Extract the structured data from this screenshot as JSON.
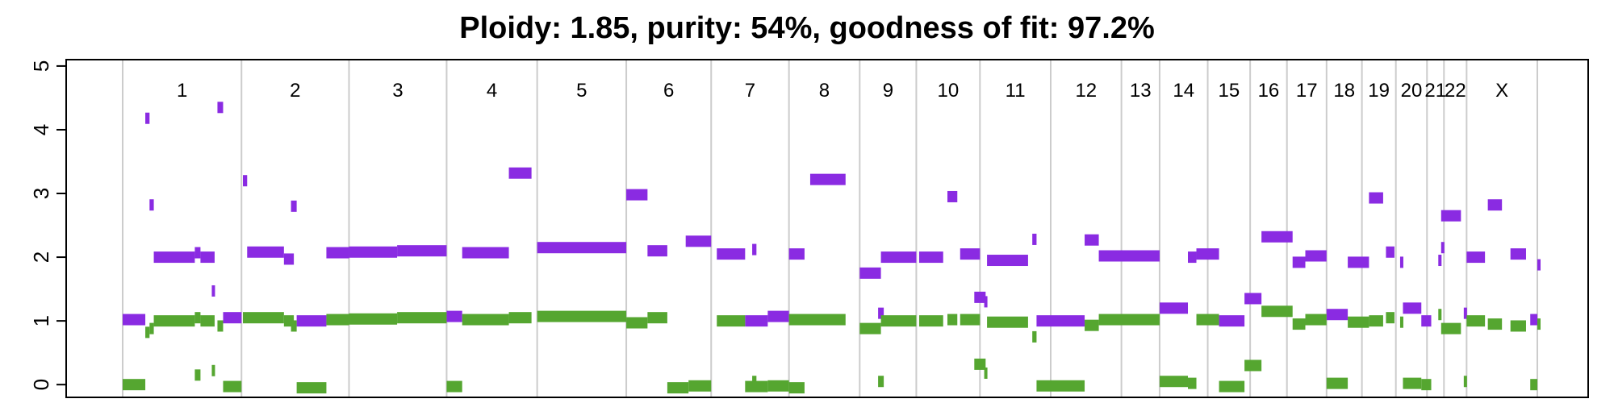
{
  "chart_data": {
    "type": "scatter",
    "title": "Ploidy: 1.85, purity: 54%, goodness of fit: 97.2%",
    "xlabel": "",
    "ylabel": "",
    "ylim": [
      -0.2,
      5.1
    ],
    "y_ticks": [
      "0",
      "1",
      "2",
      "3",
      "4",
      "5"
    ],
    "grid": true,
    "chromosomes": [
      {
        "name": "1",
        "start": 0.0,
        "end": 0.084
      },
      {
        "name": "2",
        "start": 0.084,
        "end": 0.16
      },
      {
        "name": "3",
        "start": 0.16,
        "end": 0.229
      },
      {
        "name": "4",
        "start": 0.229,
        "end": 0.293
      },
      {
        "name": "5",
        "start": 0.293,
        "end": 0.356
      },
      {
        "name": "6",
        "start": 0.356,
        "end": 0.416
      },
      {
        "name": "7",
        "start": 0.416,
        "end": 0.471
      },
      {
        "name": "8",
        "start": 0.471,
        "end": 0.521
      },
      {
        "name": "9",
        "start": 0.521,
        "end": 0.561
      },
      {
        "name": "10",
        "start": 0.561,
        "end": 0.606
      },
      {
        "name": "11",
        "start": 0.606,
        "end": 0.656
      },
      {
        "name": "12",
        "start": 0.656,
        "end": 0.706
      },
      {
        "name": "13",
        "start": 0.706,
        "end": 0.733
      },
      {
        "name": "14",
        "start": 0.733,
        "end": 0.767
      },
      {
        "name": "15",
        "start": 0.767,
        "end": 0.797
      },
      {
        "name": "16",
        "start": 0.797,
        "end": 0.823
      },
      {
        "name": "17",
        "start": 0.823,
        "end": 0.851
      },
      {
        "name": "18",
        "start": 0.851,
        "end": 0.876
      },
      {
        "name": "19",
        "start": 0.876,
        "end": 0.9
      },
      {
        "name": "20",
        "start": 0.9,
        "end": 0.922
      },
      {
        "name": "21",
        "start": 0.922,
        "end": 0.934
      },
      {
        "name": "22",
        "start": 0.934,
        "end": 0.95
      },
      {
        "name": "X",
        "start": 0.95,
        "end": 1.0
      }
    ],
    "series": [
      {
        "color": "#8a2be2",
        "segments": [
          [
            0.0,
            0.016,
            1.02
          ],
          [
            0.016,
            0.019,
            4.18
          ],
          [
            0.019,
            0.022,
            2.82
          ],
          [
            0.022,
            0.051,
            2.0
          ],
          [
            0.051,
            0.055,
            2.07
          ],
          [
            0.055,
            0.065,
            2.0
          ],
          [
            0.063,
            0.065,
            1.47
          ],
          [
            0.067,
            0.071,
            4.35
          ],
          [
            0.071,
            0.084,
            1.05
          ],
          [
            0.085,
            0.088,
            3.2
          ],
          [
            0.088,
            0.114,
            2.08
          ],
          [
            0.114,
            0.121,
            1.97
          ],
          [
            0.119,
            0.123,
            2.8
          ],
          [
            0.123,
            0.144,
            1.0
          ],
          [
            0.144,
            0.16,
            2.07
          ],
          [
            0.16,
            0.194,
            2.08
          ],
          [
            0.194,
            0.229,
            2.1
          ],
          [
            0.229,
            0.24,
            1.07
          ],
          [
            0.24,
            0.273,
            2.07
          ],
          [
            0.273,
            0.289,
            3.32
          ],
          [
            0.293,
            0.356,
            2.15
          ],
          [
            0.356,
            0.371,
            2.98
          ],
          [
            0.371,
            0.385,
            2.1
          ],
          [
            0.398,
            0.416,
            2.25
          ],
          [
            0.42,
            0.44,
            2.05
          ],
          [
            0.445,
            0.448,
            2.12
          ],
          [
            0.44,
            0.456,
            1.0
          ],
          [
            0.456,
            0.471,
            1.07
          ],
          [
            0.471,
            0.482,
            2.05
          ],
          [
            0.486,
            0.511,
            3.22
          ],
          [
            0.521,
            0.536,
            1.75
          ],
          [
            0.536,
            0.561,
            2.0
          ],
          [
            0.534,
            0.538,
            1.12
          ],
          [
            0.563,
            0.58,
            2.0
          ],
          [
            0.583,
            0.59,
            2.95
          ],
          [
            0.592,
            0.606,
            2.05
          ],
          [
            0.602,
            0.61,
            1.37
          ],
          [
            0.609,
            0.611,
            1.3
          ],
          [
            0.611,
            0.64,
            1.95
          ],
          [
            0.643,
            0.646,
            2.28
          ],
          [
            0.646,
            0.68,
            1.0
          ],
          [
            0.68,
            0.69,
            2.27
          ],
          [
            0.69,
            0.733,
            2.02
          ],
          [
            0.733,
            0.753,
            1.2
          ],
          [
            0.753,
            0.759,
            2.0
          ],
          [
            0.759,
            0.775,
            2.05
          ],
          [
            0.775,
            0.793,
            1.0
          ],
          [
            0.793,
            0.805,
            1.35
          ],
          [
            0.805,
            0.827,
            2.32
          ],
          [
            0.827,
            0.836,
            1.92
          ],
          [
            0.836,
            0.851,
            2.02
          ],
          [
            0.851,
            0.866,
            1.1
          ],
          [
            0.866,
            0.881,
            1.92
          ],
          [
            0.881,
            0.891,
            2.93
          ],
          [
            0.893,
            0.899,
            2.08
          ],
          [
            0.903,
            0.905,
            1.92
          ],
          [
            0.905,
            0.918,
            1.2
          ],
          [
            0.918,
            0.925,
            1.0
          ],
          [
            0.93,
            0.932,
            1.95
          ],
          [
            0.932,
            0.934,
            2.15
          ],
          [
            0.932,
            0.946,
            2.65
          ],
          [
            0.948,
            0.95,
            1.12
          ],
          [
            0.95,
            0.963,
            2.0
          ],
          [
            0.965,
            0.975,
            2.82
          ],
          [
            0.981,
            0.992,
            2.05
          ],
          [
            0.995,
            1.01,
            1.02
          ],
          [
            1.01,
            1.05,
            1.88
          ]
        ]
      },
      {
        "color": "#55a630",
        "segments": [
          [
            0.0,
            0.016,
            0.0
          ],
          [
            0.016,
            0.019,
            0.82
          ],
          [
            0.019,
            0.022,
            0.88
          ],
          [
            0.022,
            0.051,
            1.0
          ],
          [
            0.051,
            0.055,
            0.15
          ],
          [
            0.051,
            0.055,
            1.05
          ],
          [
            0.055,
            0.065,
            1.0
          ],
          [
            0.063,
            0.065,
            0.22
          ],
          [
            0.067,
            0.071,
            0.92
          ],
          [
            0.071,
            0.084,
            -0.03
          ],
          [
            0.085,
            0.114,
            1.05
          ],
          [
            0.114,
            0.121,
            1.0
          ],
          [
            0.119,
            0.123,
            0.92
          ],
          [
            0.123,
            0.144,
            -0.05
          ],
          [
            0.144,
            0.16,
            1.02
          ],
          [
            0.16,
            0.194,
            1.03
          ],
          [
            0.194,
            0.229,
            1.05
          ],
          [
            0.229,
            0.24,
            -0.03
          ],
          [
            0.24,
            0.273,
            1.02
          ],
          [
            0.273,
            0.289,
            1.05
          ],
          [
            0.293,
            0.356,
            1.07
          ],
          [
            0.356,
            0.371,
            0.97
          ],
          [
            0.371,
            0.385,
            1.05
          ],
          [
            0.385,
            0.4,
            -0.05
          ],
          [
            0.4,
            0.416,
            -0.02
          ],
          [
            0.42,
            0.44,
            1.0
          ],
          [
            0.44,
            0.456,
            -0.03
          ],
          [
            0.445,
            0.448,
            0.05
          ],
          [
            0.456,
            0.471,
            -0.02
          ],
          [
            0.471,
            0.482,
            -0.05
          ],
          [
            0.471,
            0.511,
            1.02
          ],
          [
            0.521,
            0.536,
            0.88
          ],
          [
            0.536,
            0.561,
            1.0
          ],
          [
            0.534,
            0.538,
            0.05
          ],
          [
            0.563,
            0.58,
            1.0
          ],
          [
            0.583,
            0.59,
            1.02
          ],
          [
            0.592,
            0.606,
            1.02
          ],
          [
            0.602,
            0.61,
            0.32
          ],
          [
            0.609,
            0.611,
            0.18
          ],
          [
            0.611,
            0.64,
            0.98
          ],
          [
            0.643,
            0.646,
            0.75
          ],
          [
            0.646,
            0.68,
            -0.02
          ],
          [
            0.68,
            0.69,
            0.93
          ],
          [
            0.69,
            0.733,
            1.02
          ],
          [
            0.733,
            0.753,
            0.05
          ],
          [
            0.753,
            0.759,
            0.02
          ],
          [
            0.759,
            0.775,
            1.02
          ],
          [
            0.775,
            0.793,
            -0.03
          ],
          [
            0.793,
            0.805,
            0.3
          ],
          [
            0.805,
            0.827,
            1.15
          ],
          [
            0.827,
            0.836,
            0.95
          ],
          [
            0.836,
            0.851,
            1.02
          ],
          [
            0.851,
            0.866,
            0.02
          ],
          [
            0.866,
            0.881,
            0.98
          ],
          [
            0.881,
            0.891,
            1.0
          ],
          [
            0.893,
            0.899,
            1.05
          ],
          [
            0.903,
            0.905,
            0.98
          ],
          [
            0.905,
            0.918,
            0.02
          ],
          [
            0.918,
            0.925,
            0.0
          ],
          [
            0.93,
            0.932,
            1.1
          ],
          [
            0.932,
            0.946,
            0.88
          ],
          [
            0.948,
            0.95,
            0.05
          ],
          [
            0.95,
            0.963,
            1.0
          ],
          [
            0.965,
            0.975,
            0.95
          ],
          [
            0.981,
            0.992,
            0.92
          ],
          [
            0.995,
            1.01,
            0.0
          ],
          [
            1.01,
            1.05,
            0.95
          ]
        ]
      }
    ]
  },
  "colors": {
    "major_cn": "#8a2be2",
    "minor_cn": "#55a630",
    "grid": "#cccccc",
    "axis": "#000000"
  }
}
